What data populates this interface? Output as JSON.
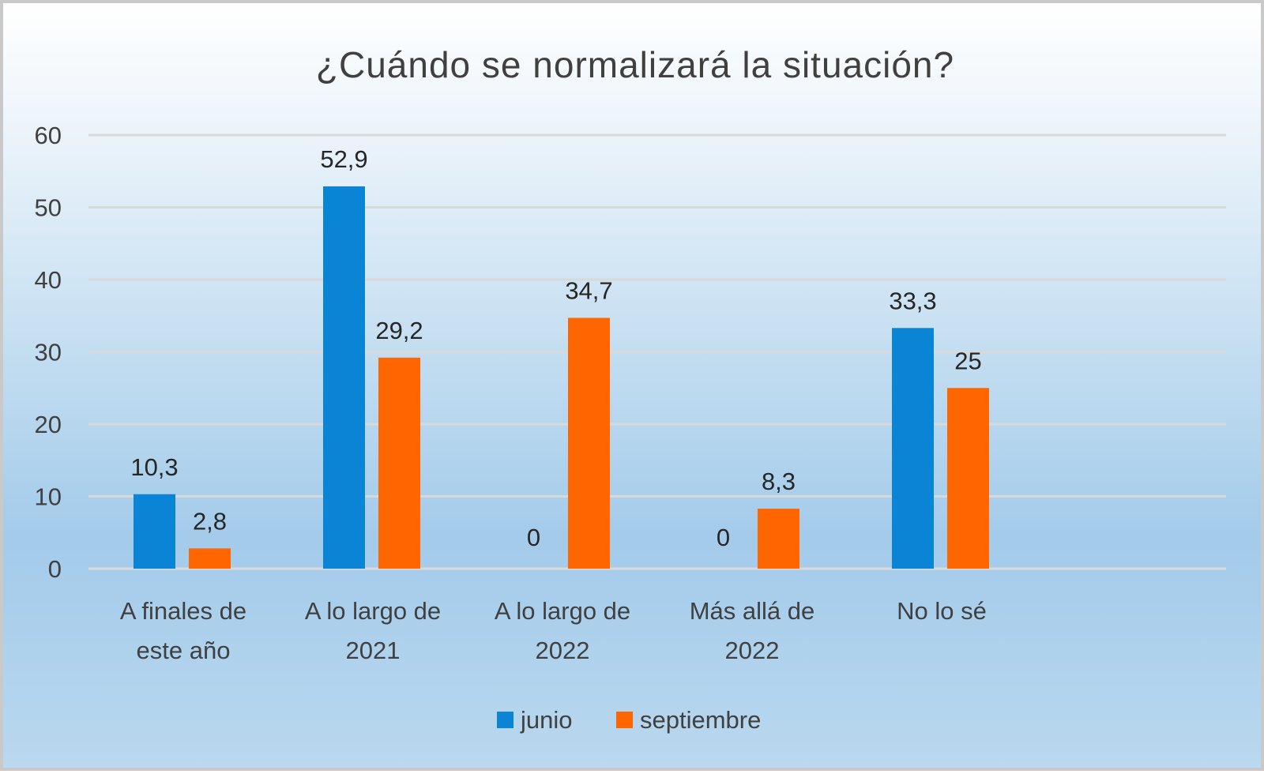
{
  "chart_data": {
    "type": "bar",
    "title": "¿Cuándo se normalizará la situación?",
    "categories": [
      [
        "A finales de",
        "este año"
      ],
      [
        "A lo largo de",
        "2021"
      ],
      [
        "A lo largo de",
        "2022"
      ],
      [
        "Más allá de",
        "2022"
      ],
      [
        "No lo sé"
      ]
    ],
    "series": [
      {
        "name": "junio",
        "color": "#0a84d4",
        "values": [
          10.3,
          52.9,
          0,
          0,
          33.3
        ],
        "labels": [
          "10,3",
          "52,9",
          "0",
          "0",
          "33,3"
        ]
      },
      {
        "name": "septiembre",
        "color": "#ff6600",
        "values": [
          2.8,
          29.2,
          34.7,
          8.3,
          25
        ],
        "labels": [
          "2,8",
          "29,2",
          "34,7",
          "8,3",
          "25"
        ]
      }
    ],
    "ylim": [
      0,
      60
    ],
    "yticks": [
      0,
      10,
      20,
      30,
      40,
      50,
      60
    ],
    "grid": true,
    "legend_position": "bottom"
  }
}
